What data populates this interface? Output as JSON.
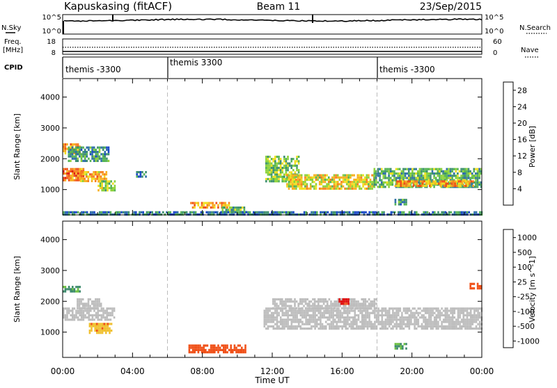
{
  "header": {
    "title": "Kapuskasing (fitACF)",
    "beam": "Beam 11",
    "date": "23/Sep/2015"
  },
  "strips": {
    "nsky_label": "N.Sky",
    "nsky_ticks": [
      "10^5",
      "10^0"
    ],
    "nsearch_label": "N.Search",
    "nsearch_ticks": [
      "10^5",
      "10^0"
    ],
    "freq_label": "Freq.",
    "freq_unit": "[MHz]",
    "freq_ticks": [
      "18",
      "8"
    ],
    "nave_label": "Nave",
    "nave_ticks": [
      "60",
      "0"
    ],
    "cpid_label": "CPID",
    "cpid_segments": [
      {
        "start_h": 0,
        "end_h": 6,
        "label": "themis -3300"
      },
      {
        "start_h": 6,
        "end_h": 18,
        "label": "themis 3300"
      },
      {
        "start_h": 18,
        "end_h": 24,
        "label": "themis -3300"
      }
    ]
  },
  "panels": {
    "ylabel": "Slant Range [km]",
    "yticks": [
      "1000",
      "2000",
      "3000",
      "4000"
    ],
    "xlabel": "Time UT",
    "xticks": [
      "00:00",
      "04:00",
      "08:00",
      "12:00",
      "16:00",
      "20:00",
      "00:00"
    ]
  },
  "power_bar": {
    "label": "Power [dB]",
    "ticks": [
      "4",
      "8",
      "12",
      "16",
      "20",
      "24",
      "28"
    ],
    "colors": [
      "#0a1ef0",
      "#1a48c8",
      "#2e6fa8",
      "#3d8f70",
      "#55b455",
      "#8dd23a",
      "#f0e020",
      "#f7b020",
      "#f78020",
      "#f05018",
      "#e02010"
    ]
  },
  "velocity_bar": {
    "label": "Velocity [m s^-1]",
    "ticks": [
      "1000",
      "500",
      "100",
      "25",
      "-25",
      "-100",
      "-500",
      "-1000"
    ],
    "colors": [
      "#1832c8",
      "#2a64a8",
      "#3c8a6c",
      "#6cc040",
      "#bdbdbd",
      "#f0c030",
      "#f09020",
      "#f05018",
      "#e01010"
    ]
  },
  "chart_data": [
    {
      "type": "heatmap",
      "name": "Power",
      "xlabel": "Time UT",
      "ylabel": "Slant Range [km]",
      "xlim": [
        0,
        24
      ],
      "ylim": [
        180,
        4600
      ],
      "x_unit": "hours UT",
      "colorbar_label": "Power [dB]",
      "colorbar_range": [
        0,
        30
      ],
      "regions": [
        {
          "t0": 0.0,
          "t1": 1.2,
          "r0": 1300,
          "r1": 1700,
          "value": 24
        },
        {
          "t0": 0.0,
          "t1": 1.0,
          "r0": 2200,
          "r1": 2500,
          "value": 22
        },
        {
          "t0": 0.3,
          "t1": 2.6,
          "r0": 1900,
          "r1": 2400,
          "value": 10
        },
        {
          "t0": 1.0,
          "t1": 2.5,
          "r0": 1250,
          "r1": 1600,
          "value": 20
        },
        {
          "t0": 2.0,
          "t1": 3.0,
          "r0": 1000,
          "r1": 1300,
          "value": 15
        },
        {
          "t0": 4.2,
          "t1": 4.8,
          "r0": 1400,
          "r1": 1600,
          "value": 8
        },
        {
          "t0": 7.3,
          "t1": 9.5,
          "r0": 400,
          "r1": 600,
          "value": 22
        },
        {
          "t0": 9.0,
          "t1": 10.5,
          "r0": 300,
          "r1": 450,
          "value": 12
        },
        {
          "t0": 11.6,
          "t1": 13.5,
          "r0": 1300,
          "r1": 2100,
          "value": 14
        },
        {
          "t0": 12.8,
          "t1": 17.8,
          "r0": 1000,
          "r1": 1500,
          "value": 18
        },
        {
          "t0": 17.8,
          "t1": 24.0,
          "r0": 1100,
          "r1": 1700,
          "value": 12
        },
        {
          "t0": 19.0,
          "t1": 23.5,
          "r0": 1100,
          "r1": 1300,
          "value": 22
        },
        {
          "t0": 19.0,
          "t1": 19.7,
          "r0": 500,
          "r1": 700,
          "value": 10
        },
        {
          "t0": 0.0,
          "t1": 24.0,
          "r0": 180,
          "r1": 300,
          "value": 8
        }
      ]
    },
    {
      "type": "heatmap",
      "name": "Velocity",
      "xlabel": "Time UT",
      "ylabel": "Slant Range [km]",
      "xlim": [
        0,
        24
      ],
      "ylim": [
        180,
        4600
      ],
      "x_unit": "hours UT",
      "colorbar_label": "Velocity [m s^-1]",
      "colorbar_range": [
        -1000,
        1000
      ],
      "regions": [
        {
          "t0": 0.0,
          "t1": 1.0,
          "r0": 2300,
          "r1": 2500,
          "value": 120
        },
        {
          "t0": 0.0,
          "t1": 3.0,
          "r0": 1400,
          "r1": 1800,
          "value": 0
        },
        {
          "t0": 0.8,
          "t1": 2.2,
          "r0": 1800,
          "r1": 2100,
          "value": 0
        },
        {
          "t0": 1.5,
          "t1": 2.8,
          "r0": 1000,
          "r1": 1300,
          "value": -80
        },
        {
          "t0": 7.2,
          "t1": 10.5,
          "r0": 350,
          "r1": 600,
          "value": -300
        },
        {
          "t0": 11.5,
          "t1": 24.0,
          "r0": 1100,
          "r1": 1800,
          "value": 0
        },
        {
          "t0": 12.0,
          "t1": 18.0,
          "r0": 1800,
          "r1": 2100,
          "value": 0
        },
        {
          "t0": 15.8,
          "t1": 16.4,
          "r0": 1900,
          "r1": 2100,
          "value": -600
        },
        {
          "t0": 19.0,
          "t1": 19.7,
          "r0": 500,
          "r1": 650,
          "value": 120
        },
        {
          "t0": 23.3,
          "t1": 24.0,
          "r0": 2400,
          "r1": 2600,
          "value": -200
        }
      ]
    }
  ]
}
